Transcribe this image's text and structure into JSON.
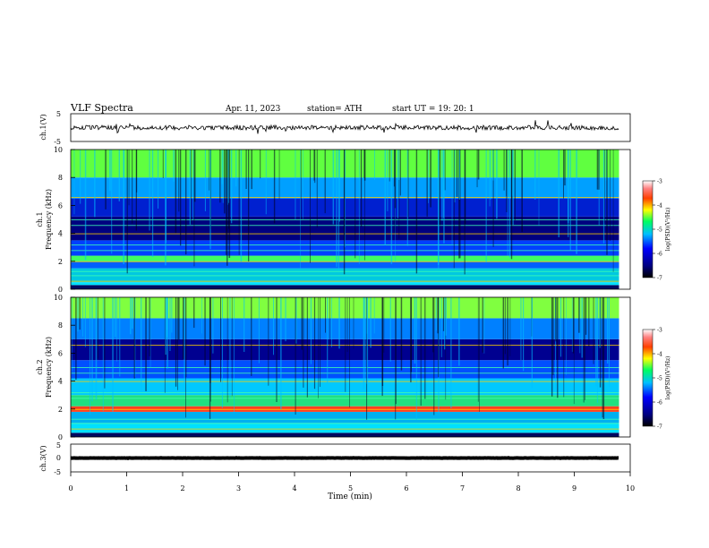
{
  "header": {
    "title": "VLF  Spectra",
    "date": "Apr. 11, 2023",
    "station": "station= ATH",
    "start": "start  UT  =    19: 20: 1"
  },
  "chart_data": [
    {
      "type": "line",
      "name": "ch1-waveform",
      "ylabel": "ch.1(V)",
      "ylim": [
        -5,
        5
      ],
      "y_ticks": [
        "5",
        "-5"
      ],
      "xlim": [
        0,
        10
      ],
      "approx_level": 0,
      "trace_color": "#000000"
    },
    {
      "type": "heatmap",
      "name": "ch1-spectrogram",
      "ylabel_lines": [
        "ch.1",
        "Frequency  (kHz)"
      ],
      "xlim": [
        0,
        9.8
      ],
      "ylim": [
        0,
        10
      ],
      "y_ticks": [
        "0",
        "2",
        "4",
        "6",
        "8",
        "10"
      ],
      "bands_khz": [
        [
          0,
          0.3,
          "#000a60"
        ],
        [
          0.3,
          0.5,
          "#00e0ff"
        ],
        [
          0.5,
          1.5,
          "#00c8e0"
        ],
        [
          1.5,
          2.0,
          "#0060ff"
        ],
        [
          2.0,
          2.4,
          "#40ff60"
        ],
        [
          2.4,
          3.5,
          "#0040ff"
        ],
        [
          3.5,
          5.2,
          "#000080"
        ],
        [
          5.2,
          6.5,
          "#0020d0"
        ],
        [
          6.5,
          8.0,
          "#00a0ff"
        ],
        [
          8.0,
          10.0,
          "#60ff40"
        ]
      ],
      "colorbar": {
        "label": "log(PSD)(V²/Hz)",
        "ticks": [
          "-3",
          "-4",
          "-5",
          "-6",
          "-7"
        ],
        "range": [
          -7,
          -3
        ]
      }
    },
    {
      "type": "heatmap",
      "name": "ch2-spectrogram",
      "ylabel_lines": [
        "ch.2",
        "Frequency  (kHz)"
      ],
      "xlim": [
        0,
        9.8
      ],
      "ylim": [
        0,
        10
      ],
      "y_ticks": [
        "0",
        "2",
        "4",
        "6",
        "8",
        "10"
      ],
      "bands_khz": [
        [
          0,
          0.3,
          "#000a60"
        ],
        [
          0.3,
          1.0,
          "#00e0ff"
        ],
        [
          1.0,
          1.8,
          "#00b0f0"
        ],
        [
          1.8,
          2.2,
          "#ff4020"
        ],
        [
          2.2,
          3.0,
          "#20e080"
        ],
        [
          3.0,
          4.2,
          "#00c8ff"
        ],
        [
          4.2,
          5.5,
          "#0050ff"
        ],
        [
          5.5,
          7.0,
          "#000090"
        ],
        [
          7.0,
          8.5,
          "#0080ff"
        ],
        [
          8.5,
          10.0,
          "#80ff40"
        ]
      ],
      "colorbar": {
        "label": "log(PSD)(V²/Hz)",
        "ticks": [
          "-3",
          "-4",
          "-5",
          "-6",
          "-7"
        ],
        "range": [
          -7,
          -3
        ]
      }
    },
    {
      "type": "line",
      "name": "ch3-waveform",
      "ylabel": "ch.3(V)",
      "ylim": [
        -5,
        5
      ],
      "y_ticks": [
        "5",
        "0",
        "-5"
      ],
      "xlim": [
        0,
        10
      ],
      "approx_level": 0,
      "trace_color": "#000000"
    }
  ],
  "x_axis": {
    "label": "Time  (min)",
    "ticks": [
      "0",
      "1",
      "2",
      "3",
      "4",
      "5",
      "6",
      "7",
      "8",
      "9",
      "10"
    ]
  }
}
